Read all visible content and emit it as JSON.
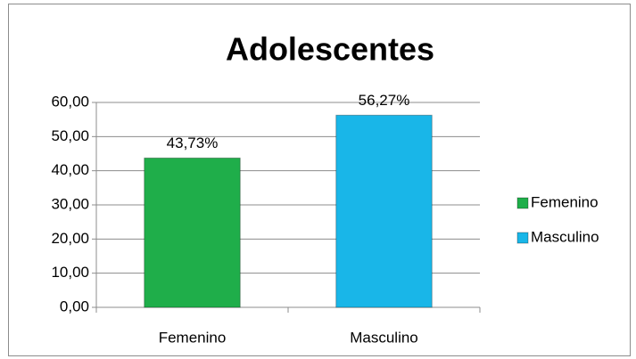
{
  "chart_data": {
    "type": "bar",
    "title": "Adolescentes",
    "categories": [
      "Femenino",
      "Masculino"
    ],
    "values": [
      43.73,
      56.27
    ],
    "value_labels": [
      "43,73%",
      "56,27%"
    ],
    "colors": [
      "#1fae4a",
      "#19b6e8"
    ],
    "ylim": [
      0,
      60
    ],
    "yticks": [
      {
        "value": 0,
        "label": "0,00"
      },
      {
        "value": 10,
        "label": "10,00"
      },
      {
        "value": 20,
        "label": "20,00"
      },
      {
        "value": 30,
        "label": "30,00"
      },
      {
        "value": 40,
        "label": "40,00"
      },
      {
        "value": 50,
        "label": "50,00"
      },
      {
        "value": 60,
        "label": "60,00"
      }
    ],
    "grid": true,
    "legend": "right"
  }
}
